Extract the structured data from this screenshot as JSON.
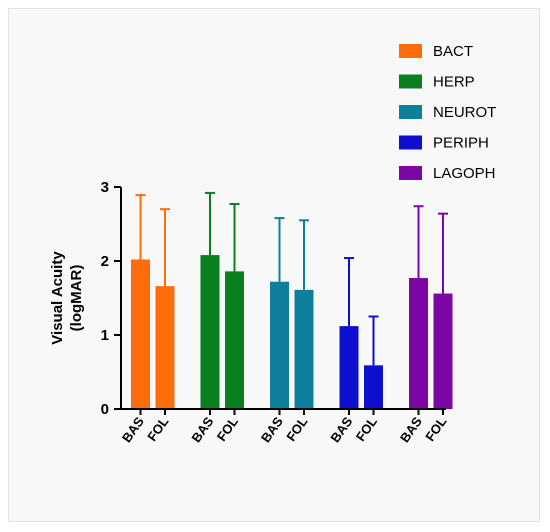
{
  "chart_data": {
    "type": "bar",
    "ylabel": [
      "Visual Acuity",
      "(logMAR)"
    ],
    "ylim": [
      0,
      3
    ],
    "yticks": [
      0,
      1,
      2,
      3
    ],
    "error_bars": "upper",
    "legend_position": "top-right",
    "groups": [
      {
        "name": "BACT",
        "color": "#ff6d0b"
      },
      {
        "name": "HERP",
        "color": "#0a7f1f"
      },
      {
        "name": "NEUROT",
        "color": "#0f809b"
      },
      {
        "name": "PERIPH",
        "color": "#0e0fcf"
      },
      {
        "name": "LAGOPH",
        "color": "#7b06a3"
      }
    ],
    "bars": [
      {
        "group": 0,
        "label": "BAS",
        "value": 2.02,
        "error_upper": 2.89
      },
      {
        "group": 0,
        "label": "FOL",
        "value": 1.66,
        "error_upper": 2.7
      },
      {
        "group": 1,
        "label": "BAS",
        "value": 2.08,
        "error_upper": 2.92
      },
      {
        "group": 1,
        "label": "FOL",
        "value": 1.86,
        "error_upper": 2.77
      },
      {
        "group": 2,
        "label": "BAS",
        "value": 1.72,
        "error_upper": 2.58
      },
      {
        "group": 2,
        "label": "FOL",
        "value": 1.61,
        "error_upper": 2.55
      },
      {
        "group": 3,
        "label": "BAS",
        "value": 1.12,
        "error_upper": 2.04
      },
      {
        "group": 3,
        "label": "FOL",
        "value": 0.59,
        "error_upper": 1.25
      },
      {
        "group": 4,
        "label": "BAS",
        "value": 1.77,
        "error_upper": 2.74
      },
      {
        "group": 4,
        "label": "FOL",
        "value": 1.56,
        "error_upper": 2.64
      }
    ]
  }
}
